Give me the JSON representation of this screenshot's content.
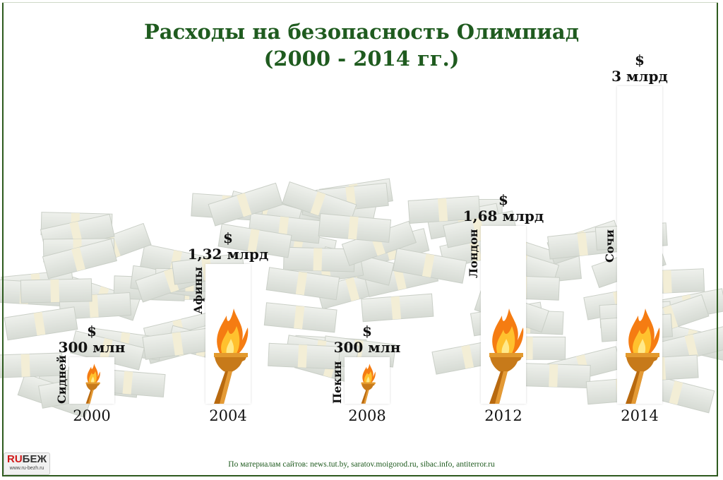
{
  "title_line1": "Расходы на безопасность Олимпиад",
  "title_line2": "(2000 - 2014 гг.)",
  "colors": {
    "title": "#1f5b1f",
    "frame": "#2d5a1e",
    "bar": "#ffffff"
  },
  "chart_data": {
    "type": "bar",
    "title": "Расходы на безопасность Олимпиад (2000 - 2014 гг.)",
    "unit": "$ млрд",
    "categories": [
      "2000",
      "2004",
      "2008",
      "2012",
      "2014"
    ],
    "cities": [
      "Сидней",
      "Афины",
      "Пекин",
      "Лондон",
      "Сочи"
    ],
    "values": [
      0.3,
      1.32,
      0.3,
      1.68,
      3
    ],
    "labels_currency": "$",
    "labels": [
      "300 млн",
      "1,32 млрд",
      "300 млн",
      "1,68 млрд",
      "3 млрд"
    ],
    "bar_icon": "torch-icon"
  },
  "source": "По материалам сайтов: news.tut.by, saratov.moigorod.ru, sibac.info, antiterror.ru",
  "logo": {
    "text_red": "RU",
    "text_dark": "БЕЖ",
    "url": "www.ru-bezh.ru"
  }
}
